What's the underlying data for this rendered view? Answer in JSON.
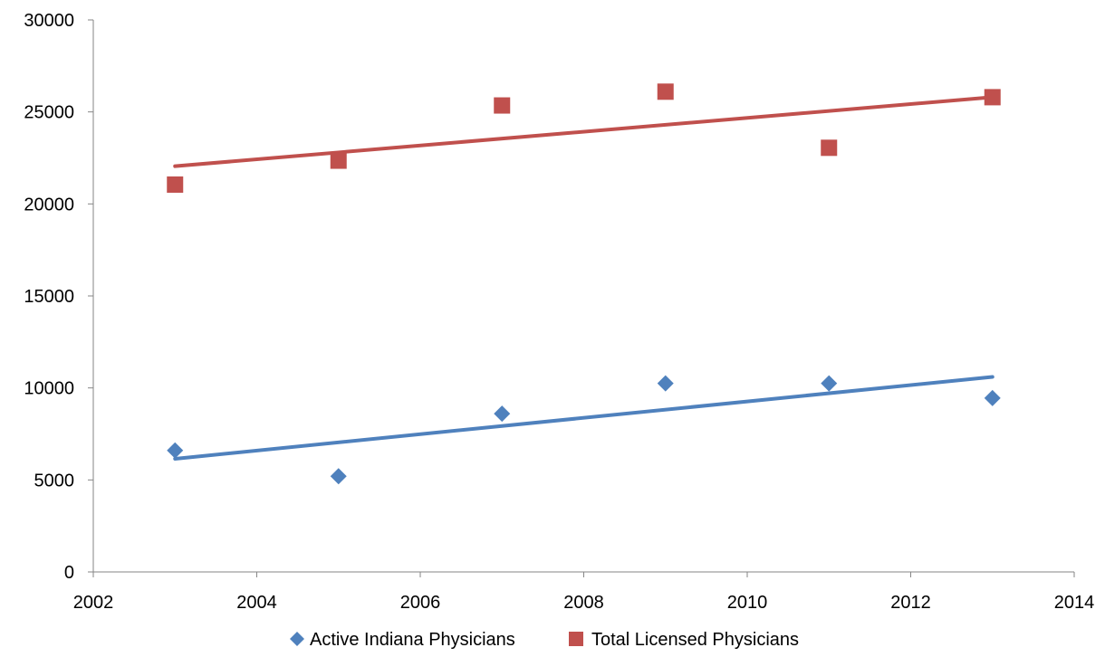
{
  "chart_data": {
    "type": "scatter",
    "title": "",
    "xlabel": "",
    "ylabel": "",
    "xlim": [
      2002,
      2014
    ],
    "ylim": [
      0,
      30000
    ],
    "x_ticks": [
      2002,
      2004,
      2006,
      2008,
      2010,
      2012,
      2014
    ],
    "y_ticks": [
      0,
      5000,
      10000,
      15000,
      20000,
      25000,
      30000
    ],
    "grid": false,
    "legend_position": "bottom",
    "series": [
      {
        "name": "Active Indiana Physicians",
        "color": "#4f81bd",
        "marker": "diamond",
        "x": [
          2003,
          2005,
          2007,
          2009,
          2011,
          2013
        ],
        "y": [
          6600,
          5200,
          8600,
          10250,
          10250,
          9450
        ],
        "trendline": {
          "type": "linear",
          "x": [
            2003,
            2013
          ],
          "y": [
            6150,
            10600
          ]
        }
      },
      {
        "name": "Total Licensed Physicians",
        "color": "#c0504d",
        "marker": "square",
        "x": [
          2003,
          2005,
          2007,
          2009,
          2011,
          2013
        ],
        "y": [
          21050,
          22350,
          25350,
          26100,
          23050,
          25800
        ],
        "trendline": {
          "type": "linear",
          "x": [
            2003,
            2013
          ],
          "y": [
            22050,
            25800
          ]
        }
      }
    ]
  }
}
